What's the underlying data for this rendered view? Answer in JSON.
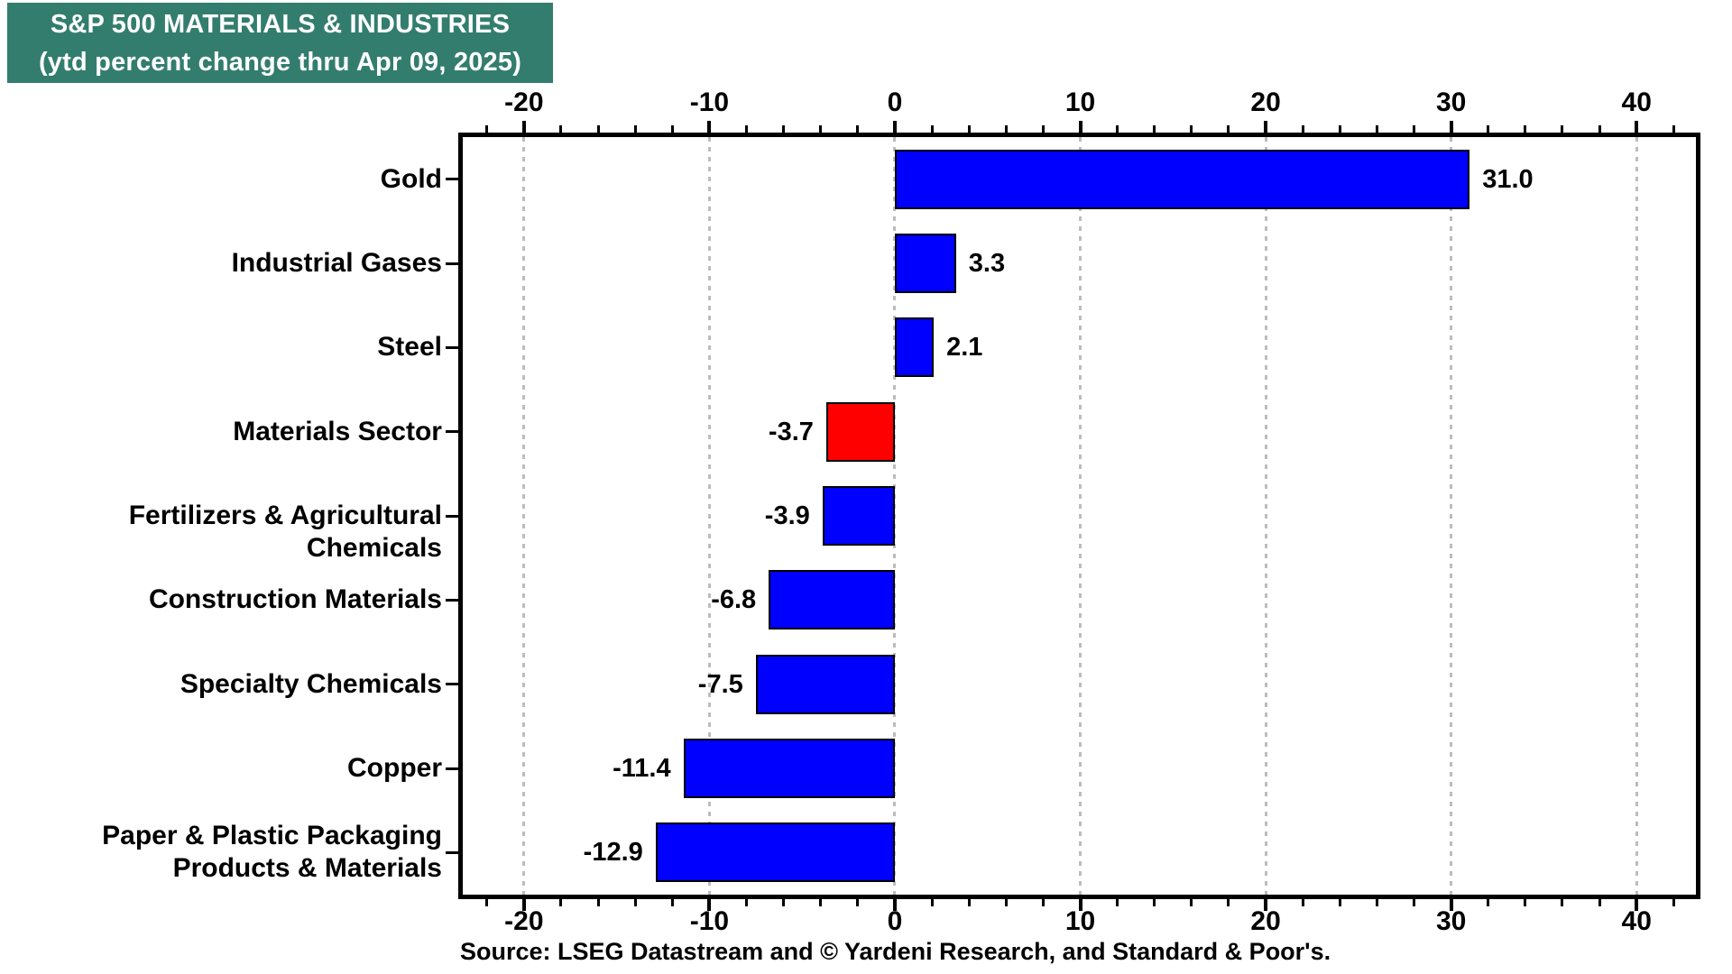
{
  "title": {
    "line1": "S&P 500 MATERIALS & INDUSTRIES",
    "line2": "(ytd percent change thru Apr 09, 2025)",
    "bg_color": "#337D6E",
    "text_color": "#FFFFFF"
  },
  "source": {
    "text": "Source: LSEG Datastream and © Yardeni Research, and Standard & Poor's."
  },
  "colors": {
    "bar_blue": "#0000FF",
    "bar_red": "#FF0000",
    "bar_border": "#000000",
    "grid_gray": "#BCBCBC",
    "axis_black": "#000000",
    "page_bg": "#FFFFFF"
  },
  "chart_data": {
    "type": "bar",
    "orientation": "horizontal",
    "title": "S&P 500 MATERIALS & INDUSTRIES (ytd percent change thru Apr 09, 2025)",
    "categories": [
      "Gold",
      "Industrial Gases",
      "Steel",
      "Materials Sector",
      "Fertilizers & Agricultural Chemicals",
      "Construction Materials",
      "Specialty Chemicals",
      "Copper",
      "Paper & Plastic Packaging\nProducts & Materials"
    ],
    "values": [
      31.0,
      3.3,
      2.1,
      -3.7,
      -3.9,
      -6.8,
      -7.5,
      -11.4,
      -12.9
    ],
    "value_labels": [
      "31.0",
      "3.3",
      "2.1",
      "-3.7",
      "-3.9",
      "-6.8",
      "-7.5",
      "-11.4",
      "-12.9"
    ],
    "bar_colors": [
      "#0000FF",
      "#0000FF",
      "#0000FF",
      "#FF0000",
      "#0000FF",
      "#0000FF",
      "#0000FF",
      "#0000FF",
      "#0000FF"
    ],
    "xlabel": "",
    "ylabel": "",
    "xlim": [
      -23.3,
      43.2
    ],
    "x_major_ticks": [
      -20,
      -10,
      0,
      10,
      20,
      30,
      40
    ],
    "x_major_tick_labels": [
      "-20",
      "-10",
      "0",
      "10",
      "20",
      "30",
      "40"
    ],
    "x_minor_tick_step": 2,
    "grid": "vertical dotted gray at major ticks, ticks drawn on top and bottom axes",
    "legend": "none"
  }
}
